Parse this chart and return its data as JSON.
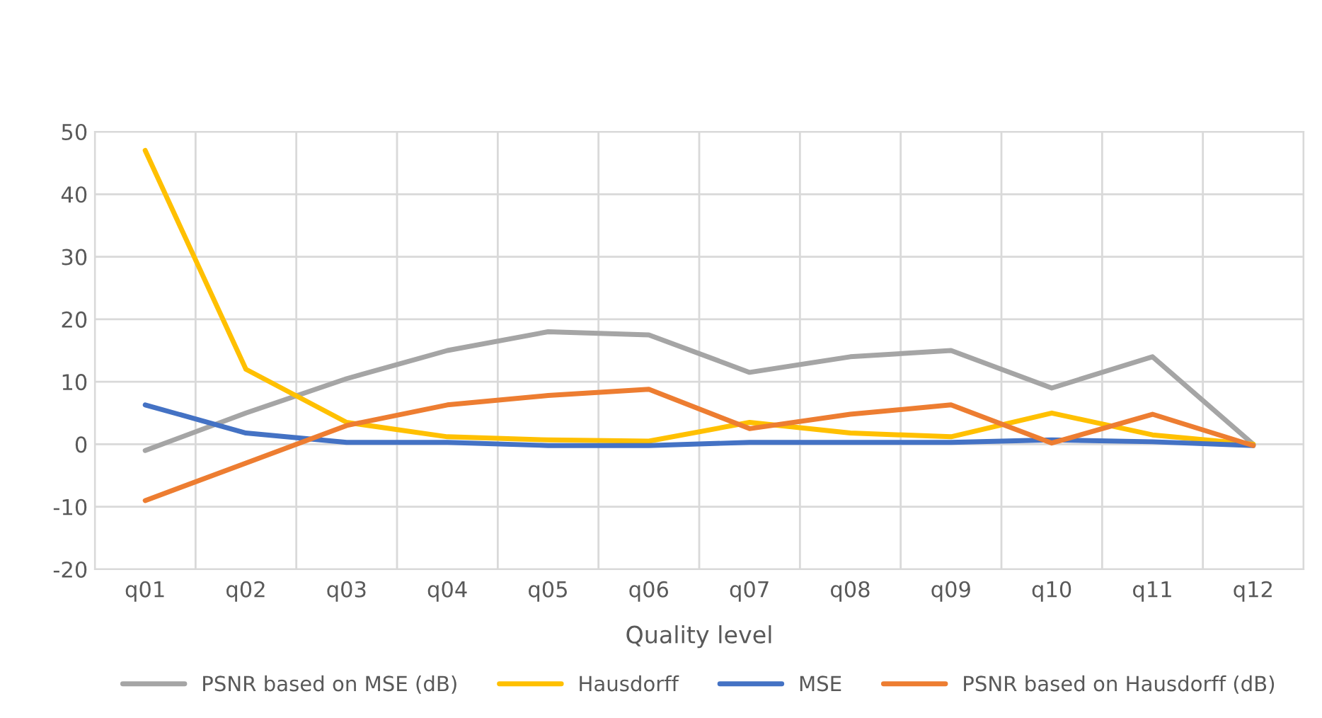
{
  "chart_data": {
    "type": "line",
    "xlabel": "Quality level",
    "categories": [
      "q01",
      "q02",
      "q03",
      "q04",
      "q05",
      "q06",
      "q07",
      "q08",
      "q09",
      "q10",
      "q11",
      "q12"
    ],
    "series": [
      {
        "name": "PSNR based on MSE (dB)",
        "color": "#a5a5a5",
        "values": [
          -1,
          5,
          10.5,
          15,
          18,
          17.5,
          11.5,
          14,
          15,
          9,
          14,
          0
        ]
      },
      {
        "name": "Hausdorff",
        "color": "#ffc000",
        "values": [
          47,
          12,
          3.5,
          1.2,
          0.7,
          0.5,
          3.5,
          1.8,
          1.2,
          5,
          1.5,
          0
        ]
      },
      {
        "name": "MSE",
        "color": "#4472c4",
        "values": [
          6.3,
          1.8,
          0.3,
          0.3,
          -0.2,
          -0.2,
          0.3,
          0.3,
          0.3,
          0.7,
          0.4,
          -0.2
        ]
      },
      {
        "name": "PSNR based on Hausdorff (dB)",
        "color": "#ed7d31",
        "values": [
          -9,
          -3,
          3,
          6.3,
          7.8,
          8.8,
          2.5,
          4.8,
          6.3,
          0.2,
          4.8,
          -0.2
        ]
      }
    ],
    "ylim": [
      -20,
      50
    ],
    "yticks": [
      -20,
      -10,
      0,
      10,
      20,
      30,
      40,
      50
    ],
    "grid": true,
    "legend": "bottom",
    "marker": "none",
    "line_style": "solid"
  }
}
